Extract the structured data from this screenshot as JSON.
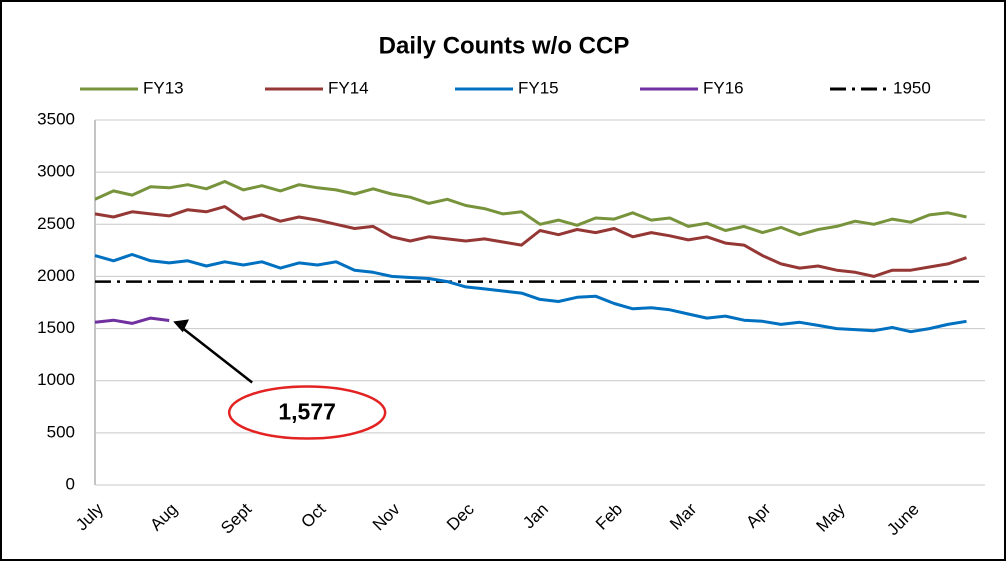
{
  "chart_data": {
    "type": "line",
    "title": "Daily Counts w/o CCP",
    "categories": [
      "July",
      null,
      null,
      null,
      "Aug",
      null,
      null,
      null,
      "Sept",
      null,
      null,
      null,
      "Oct",
      null,
      null,
      null,
      "Nov",
      null,
      null,
      null,
      "Dec",
      null,
      null,
      null,
      "Jan",
      null,
      null,
      null,
      "Feb",
      null,
      null,
      null,
      "Mar",
      null,
      null,
      null,
      "Apr",
      null,
      null,
      null,
      "May",
      null,
      null,
      null,
      "June",
      null,
      null,
      null
    ],
    "series": [
      {
        "name": "FY13",
        "color": "#77933c",
        "values": [
          2740,
          2820,
          2780,
          2860,
          2850,
          2880,
          2840,
          2910,
          2830,
          2870,
          2820,
          2880,
          2850,
          2830,
          2790,
          2840,
          2790,
          2760,
          2700,
          2740,
          2680,
          2650,
          2600,
          2620,
          2500,
          2540,
          2490,
          2560,
          2550,
          2610,
          2540,
          2560,
          2480,
          2510,
          2440,
          2480,
          2420,
          2470,
          2400,
          2450,
          2480,
          2530,
          2500,
          2550,
          2520,
          2590,
          2610,
          2570
        ]
      },
      {
        "name": "FY14",
        "color": "#953735",
        "values": [
          2600,
          2570,
          2620,
          2600,
          2580,
          2640,
          2620,
          2670,
          2550,
          2590,
          2530,
          2570,
          2540,
          2500,
          2460,
          2480,
          2380,
          2340,
          2380,
          2360,
          2340,
          2360,
          2330,
          2300,
          2440,
          2400,
          2450,
          2420,
          2460,
          2380,
          2420,
          2390,
          2350,
          2380,
          2320,
          2300,
          2200,
          2120,
          2080,
          2100,
          2060,
          2040,
          2000,
          2060,
          2060,
          2090,
          2120,
          2180
        ]
      },
      {
        "name": "FY15",
        "color": "#0070c0",
        "values": [
          2200,
          2150,
          2210,
          2150,
          2130,
          2150,
          2100,
          2140,
          2110,
          2140,
          2080,
          2130,
          2110,
          2140,
          2060,
          2040,
          2000,
          1990,
          1980,
          1950,
          1900,
          1880,
          1860,
          1840,
          1780,
          1760,
          1800,
          1810,
          1740,
          1690,
          1700,
          1680,
          1640,
          1600,
          1620,
          1580,
          1570,
          1540,
          1560,
          1530,
          1500,
          1490,
          1480,
          1510,
          1470,
          1500,
          1540,
          1570
        ]
      },
      {
        "name": "FY16",
        "color": "#7030a0",
        "values": [
          1560,
          1580,
          1550,
          1600,
          1577,
          null,
          null,
          null,
          null,
          null,
          null,
          null,
          null,
          null,
          null,
          null,
          null,
          null,
          null,
          null,
          null,
          null,
          null,
          null,
          null,
          null,
          null,
          null,
          null,
          null,
          null,
          null,
          null,
          null,
          null,
          null,
          null,
          null,
          null,
          null,
          null,
          null,
          null,
          null,
          null,
          null,
          null,
          null
        ],
        "value_labels": [
          null,
          null,
          null,
          null,
          "1,577",
          null,
          null,
          null,
          null,
          null,
          null,
          null,
          null,
          null,
          null,
          null,
          null,
          null,
          null,
          null,
          null,
          null,
          null,
          null,
          null,
          null,
          null,
          null,
          null,
          null,
          null,
          null,
          null,
          null,
          null,
          null,
          null,
          null,
          null,
          null,
          null,
          null,
          null,
          null,
          null,
          null,
          null,
          null
        ]
      }
    ],
    "reference_line": {
      "name": "1950",
      "value": 1950,
      "color": "#000000"
    },
    "ylim": [
      0,
      3500
    ],
    "yticks": [
      0,
      500,
      1000,
      1500,
      2000,
      2500,
      3000,
      3500
    ],
    "grid": true,
    "legend": "top"
  }
}
